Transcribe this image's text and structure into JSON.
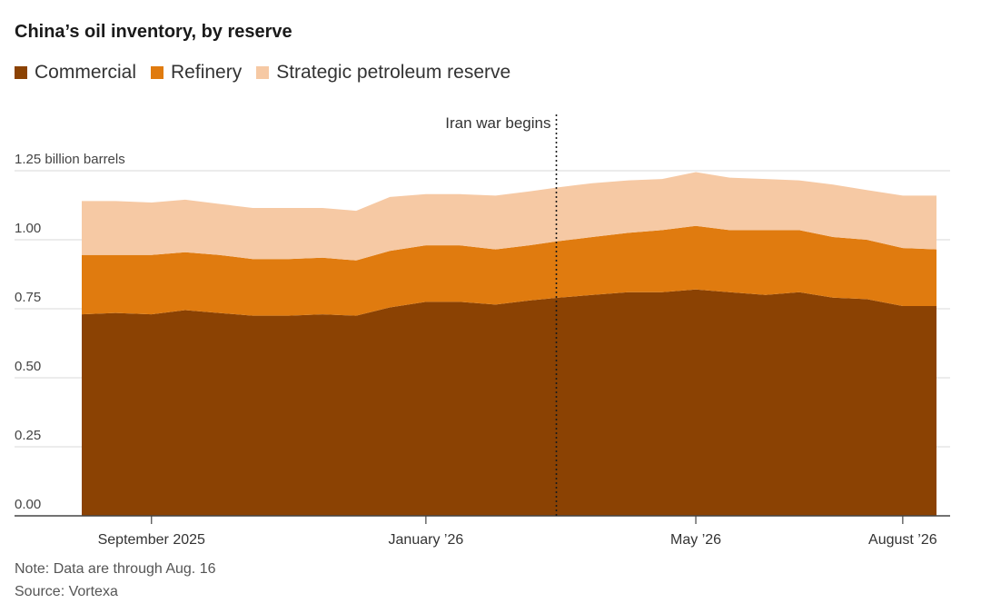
{
  "title": "China’s oil inventory, by reserve",
  "legend": [
    {
      "label": "Commercial",
      "color": "#8b4203"
    },
    {
      "label": "Refinery",
      "color": "#e07b0f"
    },
    {
      "label": "Strategic petroleum reserve",
      "color": "#f6c9a4"
    }
  ],
  "annotation": {
    "label": "Iran war begins",
    "x": "2026-02-28"
  },
  "note": "Note: Data are through Aug. 16",
  "source": "Source: Vortexa",
  "chart_data": {
    "type": "area",
    "stacked": true,
    "x": [
      "2025-08-01",
      "2025-08-16",
      "2025-09-01",
      "2025-09-16",
      "2025-10-01",
      "2025-10-16",
      "2025-11-01",
      "2025-11-16",
      "2025-12-01",
      "2025-12-16",
      "2026-01-01",
      "2026-01-16",
      "2026-02-01",
      "2026-02-16",
      "2026-03-01",
      "2026-03-16",
      "2026-04-01",
      "2026-04-16",
      "2026-05-01",
      "2026-05-16",
      "2026-06-01",
      "2026-06-16",
      "2026-07-01",
      "2026-07-16",
      "2026-08-01",
      "2026-08-16"
    ],
    "series": [
      {
        "name": "Commercial",
        "color": "#8b4203",
        "values": [
          0.73,
          0.735,
          0.73,
          0.745,
          0.735,
          0.725,
          0.725,
          0.73,
          0.725,
          0.755,
          0.775,
          0.775,
          0.765,
          0.78,
          0.79,
          0.8,
          0.81,
          0.81,
          0.82,
          0.81,
          0.8,
          0.81,
          0.79,
          0.785,
          0.76,
          0.76
        ]
      },
      {
        "name": "Refinery",
        "color": "#e07b0f",
        "values": [
          0.215,
          0.21,
          0.215,
          0.21,
          0.21,
          0.205,
          0.205,
          0.205,
          0.2,
          0.205,
          0.205,
          0.205,
          0.2,
          0.2,
          0.205,
          0.21,
          0.215,
          0.225,
          0.23,
          0.225,
          0.235,
          0.225,
          0.22,
          0.215,
          0.21,
          0.205
        ]
      },
      {
        "name": "Strategic petroleum reserve",
        "color": "#f6c9a4",
        "values": [
          0.195,
          0.195,
          0.19,
          0.19,
          0.185,
          0.185,
          0.185,
          0.18,
          0.18,
          0.195,
          0.185,
          0.185,
          0.195,
          0.195,
          0.195,
          0.195,
          0.19,
          0.185,
          0.195,
          0.19,
          0.185,
          0.18,
          0.19,
          0.18,
          0.19,
          0.195
        ]
      }
    ],
    "ylim": [
      0,
      1.25
    ],
    "yticks": [
      0,
      0.25,
      0.5,
      0.75,
      1.0,
      1.25
    ],
    "ytick_labels": [
      "0.00",
      "0.25",
      "0.50",
      "0.75",
      "1.00",
      "1.25 billion barrels"
    ],
    "xticks": [
      {
        "x": "2025-09-01",
        "label": "September 2025"
      },
      {
        "x": "2026-01-01",
        "label": "January ’26"
      },
      {
        "x": "2026-05-01",
        "label": "May ’26"
      },
      {
        "x": "2026-08-01",
        "label": "August ’26"
      }
    ],
    "xlabel": "",
    "ylabel": "",
    "grid": true,
    "legend_position": "top-left"
  }
}
